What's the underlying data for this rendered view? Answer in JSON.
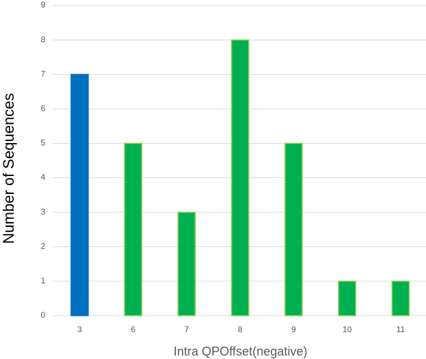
{
  "chart_data": {
    "type": "bar",
    "x_label": "Intra QPOffset(negative)",
    "y_label": "Number of  Sequences",
    "categories": [
      "3",
      "6",
      "7",
      "8",
      "9",
      "10",
      "11"
    ],
    "values": [
      7,
      5,
      3,
      8,
      5,
      1,
      1
    ],
    "colors": [
      "#0070c0",
      "#00b050",
      "#00b050",
      "#00b050",
      "#00b050",
      "#00b050",
      "#00b050"
    ],
    "edgecolors": [
      "#0070c0",
      "#92d050",
      "#92d050",
      "#92d050",
      "#92d050",
      "#92d050",
      "#92d050"
    ],
    "ylim": [
      0,
      9
    ],
    "yticks": [
      0,
      1,
      2,
      3,
      4,
      5,
      6,
      7,
      8,
      9
    ],
    "grid": true
  }
}
